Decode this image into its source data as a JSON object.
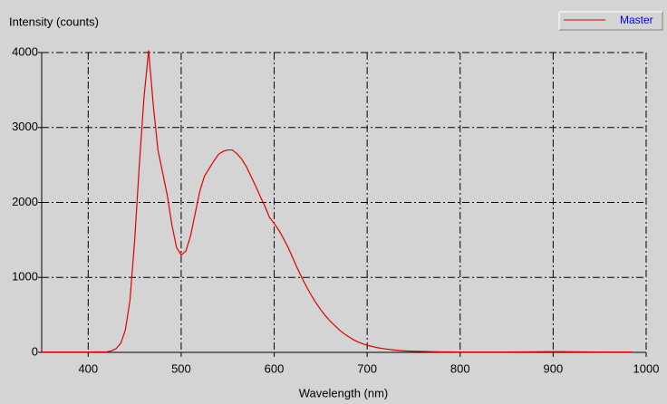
{
  "chart_data": {
    "type": "line",
    "y_label": "Intensity (counts)",
    "x_label": "Wavelength (nm)",
    "xlim": [
      350,
      1000
    ],
    "ylim": [
      0,
      4000
    ],
    "xticks": [
      400,
      500,
      600,
      700,
      800,
      900,
      1000
    ],
    "yticks": [
      0,
      1000,
      2000,
      3000,
      4000
    ],
    "grid": true,
    "legend": "top-right",
    "x": [
      350,
      400,
      420,
      425,
      430,
      435,
      440,
      445,
      450,
      455,
      460,
      465,
      470,
      475,
      480,
      485,
      490,
      495,
      500,
      505,
      510,
      515,
      520,
      525,
      530,
      535,
      540,
      545,
      550,
      555,
      560,
      565,
      570,
      575,
      580,
      585,
      590,
      595,
      600,
      605,
      610,
      615,
      620,
      625,
      630,
      635,
      640,
      645,
      650,
      655,
      660,
      665,
      670,
      675,
      680,
      685,
      690,
      695,
      700,
      710,
      720,
      730,
      740,
      750,
      775,
      800,
      850,
      900,
      950,
      985
    ],
    "series": [
      {
        "name": "Master",
        "color": "#e00000",
        "values": [
          5,
          5,
          8,
          20,
          50,
          120,
          300,
          700,
          1500,
          2500,
          3400,
          4030,
          3300,
          2700,
          2400,
          2100,
          1700,
          1400,
          1300,
          1350,
          1550,
          1850,
          2150,
          2350,
          2450,
          2550,
          2640,
          2680,
          2700,
          2700,
          2650,
          2580,
          2480,
          2350,
          2220,
          2080,
          1950,
          1800,
          1720,
          1630,
          1520,
          1400,
          1260,
          1120,
          990,
          870,
          760,
          660,
          570,
          490,
          420,
          360,
          300,
          250,
          210,
          170,
          140,
          115,
          95,
          65,
          45,
          30,
          20,
          15,
          8,
          5,
          5,
          10,
          5,
          5
        ]
      }
    ]
  }
}
